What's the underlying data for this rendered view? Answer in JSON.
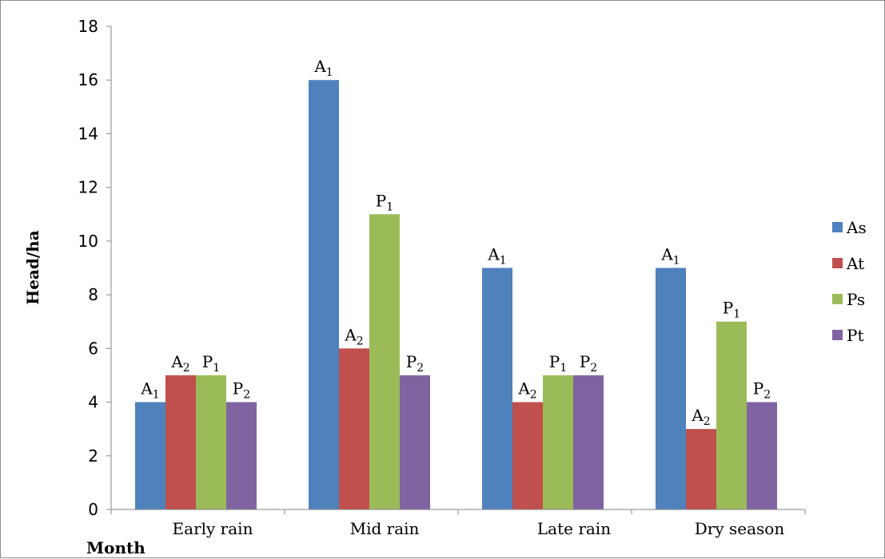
{
  "chart_data": {
    "type": "bar",
    "title": "",
    "xlabel": "Month",
    "ylabel": "Head/ha",
    "ylim": [
      0,
      18
    ],
    "yticks": [
      0,
      2,
      4,
      6,
      8,
      10,
      12,
      14,
      16,
      18
    ],
    "categories": [
      "Early rain",
      "Mid rain",
      "Late rain",
      "Dry season"
    ],
    "series": [
      {
        "name": "As",
        "color": "#4f81bd",
        "values": [
          4,
          16,
          9,
          9
        ]
      },
      {
        "name": "At",
        "color": "#c0504d",
        "values": [
          5,
          6,
          4,
          3
        ]
      },
      {
        "name": "Ps",
        "color": "#9bbb59",
        "values": [
          5,
          11,
          5,
          7
        ]
      },
      {
        "name": "Pt",
        "color": "#8064a2",
        "values": [
          4,
          5,
          5,
          4
        ]
      }
    ],
    "data_labels": [
      [
        {
          "base": "A",
          "sub": "1"
        },
        {
          "base": "A",
          "sub": "1"
        },
        {
          "base": "A",
          "sub": "1"
        },
        {
          "base": "A",
          "sub": "1"
        }
      ],
      [
        {
          "base": "A",
          "sub": "2"
        },
        {
          "base": "A",
          "sub": "2"
        },
        {
          "base": "A",
          "sub": "2"
        },
        {
          "base": "A",
          "sub": "2"
        }
      ],
      [
        {
          "base": "P",
          "sub": "1"
        },
        {
          "base": "P",
          "sub": "1"
        },
        {
          "base": "P",
          "sub": "1"
        },
        {
          "base": "P",
          "sub": "1"
        }
      ],
      [
        {
          "base": "P",
          "sub": "2"
        },
        {
          "base": "P",
          "sub": "2"
        },
        {
          "base": "P",
          "sub": "2"
        },
        {
          "base": "P",
          "sub": "2"
        }
      ]
    ],
    "grid": false,
    "legend_position": "right"
  }
}
